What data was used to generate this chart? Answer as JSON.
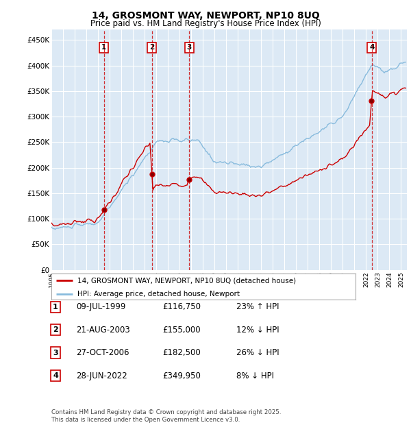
{
  "title": "14, GROSMONT WAY, NEWPORT, NP10 8UQ",
  "subtitle": "Price paid vs. HM Land Registry's House Price Index (HPI)",
  "ylabel_ticks": [
    "£0",
    "£50K",
    "£100K",
    "£150K",
    "£200K",
    "£250K",
    "£300K",
    "£350K",
    "£400K",
    "£450K"
  ],
  "ylim": [
    0,
    470000
  ],
  "xlim_start": 1995.0,
  "xlim_end": 2025.5,
  "background_color": "#dce9f5",
  "grid_color": "#ffffff",
  "red_line_color": "#cc0000",
  "blue_line_color": "#88bbdd",
  "purchases": [
    {
      "label": "1",
      "date": "09-JUL-1999",
      "price": 116750,
      "pct": "23%",
      "dir": "↑",
      "year": 1999.52
    },
    {
      "label": "2",
      "date": "21-AUG-2003",
      "price": 155000,
      "pct": "12%",
      "dir": "↓",
      "year": 2003.63
    },
    {
      "label": "3",
      "date": "27-OCT-2006",
      "price": 182500,
      "pct": "26%",
      "dir": "↓",
      "year": 2006.82
    },
    {
      "label": "4",
      "date": "28-JUN-2022",
      "price": 349950,
      "pct": "8%",
      "dir": "↓",
      "year": 2022.49
    }
  ],
  "legend_line1": "14, GROSMONT WAY, NEWPORT, NP10 8UQ (detached house)",
  "legend_line2": "HPI: Average price, detached house, Newport",
  "footer": "Contains HM Land Registry data © Crown copyright and database right 2025.\nThis data is licensed under the Open Government Licence v3.0.",
  "table_rows": [
    [
      "1",
      "09-JUL-1999",
      "£116,750",
      "23% ↑ HPI"
    ],
    [
      "2",
      "21-AUG-2003",
      "£155,000",
      "12% ↓ HPI"
    ],
    [
      "3",
      "27-OCT-2006",
      "£182,500",
      "26% ↓ HPI"
    ],
    [
      "4",
      "28-JUN-2022",
      "£349,950",
      "8% ↓ HPI"
    ]
  ]
}
